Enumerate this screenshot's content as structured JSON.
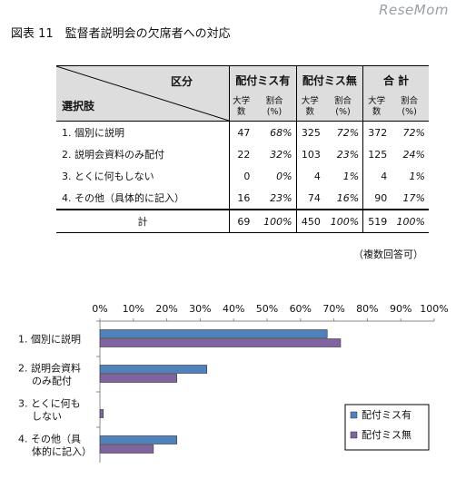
{
  "watermark": "ReseMom",
  "figure_title": "図表 11　監督者説明会の欠席者への対応",
  "table": {
    "header_kubun": "区分",
    "header_sentaku": "選択肢",
    "groups": [
      "配付ミス有",
      "配付ミス無",
      "合 計"
    ],
    "subheaders": [
      [
        "大学",
        "数"
      ],
      [
        "割合",
        "(%)"
      ]
    ],
    "rows": [
      {
        "label": "1. 個別に説明",
        "values": [
          "47",
          "68%",
          "325",
          "72%",
          "372",
          "72%"
        ]
      },
      {
        "label": "2. 説明会資料のみ配付",
        "values": [
          "22",
          "32%",
          "103",
          "23%",
          "125",
          "24%"
        ]
      },
      {
        "label": "3. とくに何もしない",
        "values": [
          "0",
          "0%",
          "4",
          "1%",
          "4",
          "1%"
        ]
      },
      {
        "label": "4. その他（具体的に記入）",
        "values": [
          "16",
          "23%",
          "74",
          "16%",
          "90",
          "17%"
        ]
      }
    ],
    "total": {
      "label": "計",
      "values": [
        "69",
        "100%",
        "450",
        "100%",
        "519",
        "100%"
      ]
    }
  },
  "note": "（複数回答可）",
  "chart_data": {
    "type": "bar",
    "orientation": "horizontal",
    "categories": [
      [
        "1.  個別に説明"
      ],
      [
        "2.  説明会資料",
        "のみ配付"
      ],
      [
        "3.  とくに何も",
        "しない"
      ],
      [
        "4.  その他（具",
        "体的に記入）"
      ]
    ],
    "series": [
      {
        "name": "配付ミス有",
        "color": "#4f81bd",
        "values": [
          68,
          32,
          0,
          23
        ]
      },
      {
        "name": "配付ミス無",
        "color": "#8064a2",
        "values": [
          72,
          23,
          1,
          16
        ]
      }
    ],
    "xlim": [
      0,
      100
    ],
    "xticks": [
      "0%",
      "10%",
      "20%",
      "30%",
      "40%",
      "50%",
      "60%",
      "70%",
      "80%",
      "90%",
      "100%"
    ],
    "legend_position": "bottom-right",
    "grid": false
  }
}
